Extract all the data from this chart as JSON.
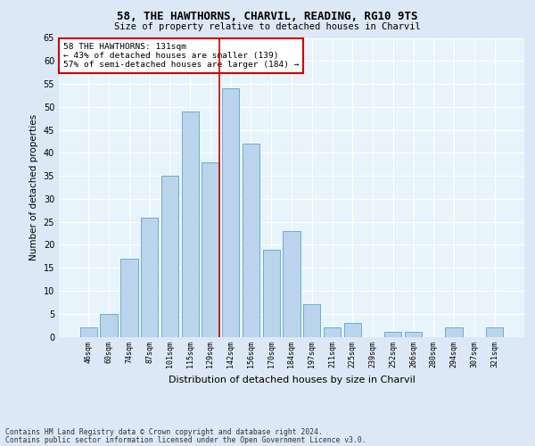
{
  "title1": "58, THE HAWTHORNS, CHARVIL, READING, RG10 9TS",
  "title2": "Size of property relative to detached houses in Charvil",
  "xlabel": "Distribution of detached houses by size in Charvil",
  "ylabel": "Number of detached properties",
  "bar_labels": [
    "46sqm",
    "60sqm",
    "74sqm",
    "87sqm",
    "101sqm",
    "115sqm",
    "129sqm",
    "142sqm",
    "156sqm",
    "170sqm",
    "184sqm",
    "197sqm",
    "211sqm",
    "225sqm",
    "239sqm",
    "252sqm",
    "266sqm",
    "280sqm",
    "294sqm",
    "307sqm",
    "321sqm"
  ],
  "bar_values": [
    2,
    5,
    17,
    26,
    35,
    49,
    38,
    54,
    42,
    19,
    23,
    7,
    2,
    3,
    0,
    1,
    1,
    0,
    2,
    0,
    2
  ],
  "bar_color": "#bad4eb",
  "bar_edge_color": "#6aaed6",
  "ylim": [
    0,
    65
  ],
  "yticks": [
    0,
    5,
    10,
    15,
    20,
    25,
    30,
    35,
    40,
    45,
    50,
    55,
    60,
    65
  ],
  "vline_x": 6.42,
  "vline_color": "#cc0000",
  "annotation_text": "58 THE HAWTHORNS: 131sqm\n← 43% of detached houses are smaller (139)\n57% of semi-detached houses are larger (184) →",
  "annotation_box_color": "#ffffff",
  "annotation_box_edge": "#cc0000",
  "bg_color": "#dce8f5",
  "plot_bg_color": "#e8f4fb",
  "footer1": "Contains HM Land Registry data © Crown copyright and database right 2024.",
  "footer2": "Contains public sector information licensed under the Open Government Licence v3.0."
}
